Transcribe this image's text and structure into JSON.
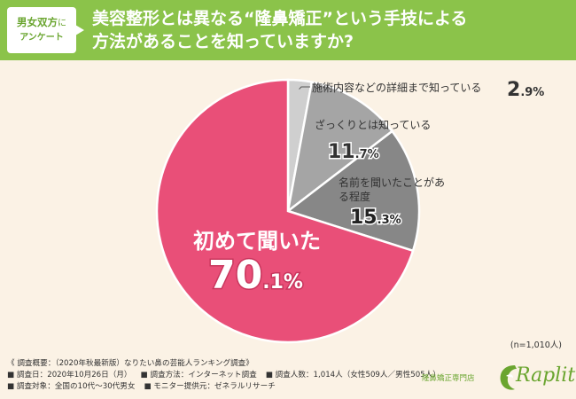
{
  "header": {
    "badge_line1": "男女双方",
    "badge_ni": "に",
    "badge_line2": "アンケート",
    "title_line1": "美容整形とは異なる“隆鼻矯正”という手技による",
    "title_line2": "方法があることを知っていますか?"
  },
  "colors": {
    "header_bg": "#8bc34a",
    "panel_bg": "#fbf2e5",
    "pink": "#e94f78",
    "dark_gray": "#878787",
    "mid_gray": "#a5a5a5",
    "light_gray": "#cfcfcf",
    "brand_green": "#6aa52f"
  },
  "chart_data": {
    "type": "pie",
    "start": "12 o'clock",
    "direction": "clockwise",
    "slices": [
      {
        "label": "施術内容などの詳細まで知っている",
        "value": 2.9,
        "display": "2.9%",
        "color": "#cfcfcf"
      },
      {
        "label": "ざっくりとは知っている",
        "value": 11.7,
        "display": "11.7%",
        "color": "#a5a5a5"
      },
      {
        "label": "名前を聞いたことがある程度",
        "value": 15.3,
        "display": "15.3%",
        "color": "#878787"
      },
      {
        "label": "初めて聞いた",
        "value": 70.1,
        "display": "70.1%",
        "color": "#e94f78"
      }
    ],
    "sample_note": "(n=1,010人)"
  },
  "survey": {
    "summary": "《 調査概要：（2020年秋最新版）なりたい鼻の芸能人ランキング調査》",
    "date": "■ 調査日：2020年10月26日（月）",
    "method": "■ 調査方法：インターネット調査",
    "people": "■ 調査人数：1,014人（女性509人／男性505人）",
    "target": "■ 調査対象：全国の10代〜30代男女",
    "monitor": "■ モニター提供元：ゼネラルリサーチ"
  },
  "brand": {
    "subtitle": "隆鼻矯正専門店",
    "name": "Raplit"
  }
}
